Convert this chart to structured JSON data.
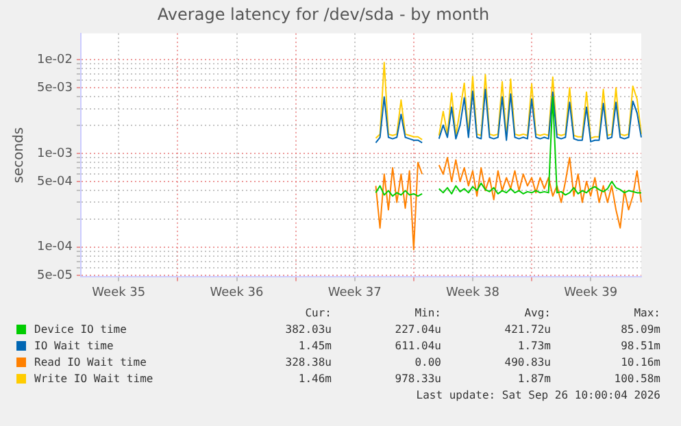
{
  "chart_data": {
    "type": "line",
    "title": "Average latency for /dev/sda - by month",
    "ylabel": "seconds",
    "log": true,
    "grid": true,
    "legend": "bottom",
    "marker": "none",
    "line_style": "solid",
    "categories": [
      null,
      null,
      null,
      null,
      null,
      null,
      null,
      null,
      null,
      "Week 35",
      null,
      null,
      null,
      null,
      null,
      null,
      null,
      null,
      null,
      null,
      null,
      null,
      null,
      null,
      null,
      null,
      null,
      null,
      null,
      null,
      null,
      null,
      null,
      null,
      null,
      null,
      null,
      "Week 36",
      null,
      null,
      null,
      null,
      null,
      null,
      null,
      null,
      null,
      null,
      null,
      null,
      null,
      null,
      null,
      null,
      null,
      null,
      null,
      null,
      null,
      null,
      null,
      null,
      null,
      null,
      null,
      "Week 37",
      null,
      null,
      null,
      null,
      null,
      null,
      null,
      null,
      null,
      null,
      null,
      null,
      null,
      null,
      null,
      null,
      null,
      null,
      null,
      null,
      null,
      null,
      null,
      null,
      null,
      null,
      null,
      "Week 38",
      null,
      null,
      null,
      null,
      null,
      null,
      null,
      null,
      null,
      null,
      null,
      null,
      null,
      null,
      null,
      null,
      null,
      null,
      null,
      null,
      null,
      null,
      null,
      null,
      null,
      null,
      null,
      "Week 39",
      null,
      null,
      null,
      null,
      null,
      null,
      null,
      null,
      null,
      null,
      null,
      null
    ],
    "ylim": [
      4.8e-05,
      0.019
    ],
    "yticks": [
      {
        "value": 0.01,
        "label": "1e-02"
      },
      {
        "value": 0.005,
        "label": "5e-03"
      },
      {
        "value": 0.001,
        "label": "1e-03"
      },
      {
        "value": 0.0005,
        "label": "5e-04"
      },
      {
        "value": 0.0001,
        "label": "1e-04"
      },
      {
        "value": 5e-05,
        "label": "5e-05"
      },
      {
        "value": 0.009,
        "label": null
      },
      {
        "value": 0.008,
        "label": null
      },
      {
        "value": 0.007,
        "label": null
      },
      {
        "value": 0.006,
        "label": null
      },
      {
        "value": 0.004,
        "label": null
      },
      {
        "value": 0.003,
        "label": null
      },
      {
        "value": 0.002,
        "label": null
      },
      {
        "value": 0.0009,
        "label": null
      },
      {
        "value": 0.0008,
        "label": null
      },
      {
        "value": 0.0007,
        "label": null
      },
      {
        "value": 0.0006,
        "label": null
      },
      {
        "value": 0.0004,
        "label": null
      },
      {
        "value": 0.0003,
        "label": null
      },
      {
        "value": 0.0002,
        "label": null
      },
      {
        "value": 9e-05,
        "label": null
      },
      {
        "value": 8e-05,
        "label": null
      },
      {
        "value": 7e-05,
        "label": null
      },
      {
        "value": 6e-05,
        "label": null
      }
    ],
    "series": [
      {
        "name": "Device IO time",
        "color": "#00cc00",
        "values": [
          null,
          null,
          null,
          null,
          null,
          null,
          null,
          null,
          null,
          null,
          null,
          null,
          null,
          null,
          null,
          null,
          null,
          null,
          null,
          null,
          null,
          null,
          null,
          null,
          null,
          null,
          null,
          null,
          null,
          null,
          null,
          null,
          null,
          null,
          null,
          null,
          null,
          null,
          null,
          null,
          null,
          null,
          null,
          null,
          null,
          null,
          null,
          null,
          null,
          null,
          null,
          null,
          null,
          null,
          null,
          null,
          null,
          null,
          null,
          null,
          null,
          null,
          null,
          null,
          null,
          null,
          null,
          null,
          null,
          null,
          0.00038,
          0.00045,
          0.00036,
          0.0004,
          0.00035,
          0.00038,
          0.00036,
          0.0004,
          0.00036,
          0.00037,
          0.00035,
          0.00037,
          null,
          null,
          null,
          0.00042,
          0.00038,
          0.00043,
          0.00037,
          0.00045,
          0.00039,
          0.00042,
          0.00038,
          0.00044,
          0.0004,
          0.00048,
          0.00041,
          0.00039,
          0.00043,
          0.00037,
          0.0004,
          0.00038,
          0.00042,
          0.00038,
          0.0004,
          0.00037,
          0.00039,
          0.00038,
          0.0004,
          0.00038,
          0.00039,
          0.00038,
          0.004,
          0.00038,
          0.00039,
          0.00036,
          0.00038,
          0.00043,
          0.00037,
          0.0004,
          0.00038,
          0.00042,
          0.00044,
          0.00041,
          0.00039,
          0.00042,
          0.0005,
          0.00043,
          0.00041,
          0.00038,
          0.0004,
          0.00039,
          0.00038,
          0.00038
        ]
      },
      {
        "name": "IO Wait time",
        "color": "#0066b3",
        "values": [
          null,
          null,
          null,
          null,
          null,
          null,
          null,
          null,
          null,
          null,
          null,
          null,
          null,
          null,
          null,
          null,
          null,
          null,
          null,
          null,
          null,
          null,
          null,
          null,
          null,
          null,
          null,
          null,
          null,
          null,
          null,
          null,
          null,
          null,
          null,
          null,
          null,
          null,
          null,
          null,
          null,
          null,
          null,
          null,
          null,
          null,
          null,
          null,
          null,
          null,
          null,
          null,
          null,
          null,
          null,
          null,
          null,
          null,
          null,
          null,
          null,
          null,
          null,
          null,
          null,
          null,
          null,
          null,
          null,
          null,
          0.0013,
          0.00148,
          0.004,
          0.00148,
          0.00143,
          0.00148,
          0.0026,
          0.00148,
          0.00143,
          0.00138,
          0.00138,
          0.0013,
          null,
          null,
          null,
          0.00143,
          0.002,
          0.00148,
          0.0031,
          0.00143,
          0.002,
          0.0039,
          0.00148,
          0.0046,
          0.00148,
          0.00143,
          0.0048,
          0.00148,
          0.00143,
          0.00148,
          0.004,
          0.00138,
          0.0043,
          0.00148,
          0.00143,
          0.00148,
          0.00143,
          0.0038,
          0.00148,
          0.00143,
          0.00148,
          0.00143,
          0.0045,
          0.00148,
          0.00143,
          0.00148,
          0.0035,
          0.00143,
          0.00138,
          0.00138,
          0.0031,
          0.00133,
          0.00138,
          0.00138,
          0.0034,
          0.00143,
          0.00148,
          0.0035,
          0.00148,
          0.00143,
          0.00148,
          0.0036,
          0.0027,
          0.00148
        ]
      },
      {
        "name": "Read IO Wait time",
        "color": "#ff8000",
        "values": [
          null,
          null,
          null,
          null,
          null,
          null,
          null,
          null,
          null,
          null,
          null,
          null,
          null,
          null,
          null,
          null,
          null,
          null,
          null,
          null,
          null,
          null,
          null,
          null,
          null,
          null,
          null,
          null,
          null,
          null,
          null,
          null,
          null,
          null,
          null,
          null,
          null,
          null,
          null,
          null,
          null,
          null,
          null,
          null,
          null,
          null,
          null,
          null,
          null,
          null,
          null,
          null,
          null,
          null,
          null,
          null,
          null,
          null,
          null,
          null,
          null,
          null,
          null,
          null,
          null,
          null,
          null,
          null,
          null,
          null,
          0.00045,
          0.00016,
          0.0006,
          0.00025,
          0.0007,
          0.0003,
          0.0006,
          0.00026,
          0.00065,
          9.4e-05,
          0.0008,
          0.0006,
          null,
          null,
          null,
          0.00075,
          0.0006,
          0.0009,
          0.0005,
          0.00085,
          0.0005,
          0.0007,
          0.00045,
          0.00065,
          0.00035,
          0.0007,
          0.0004,
          0.00055,
          0.00032,
          0.00065,
          0.0004,
          0.00055,
          0.00042,
          0.00065,
          0.0004,
          0.0006,
          0.00045,
          0.00055,
          0.00038,
          0.00055,
          0.00042,
          0.00055,
          0.00035,
          0.00045,
          0.0003,
          0.0005,
          0.0009,
          0.00035,
          0.0006,
          0.0003,
          0.0005,
          0.00035,
          0.00055,
          0.0003,
          0.00045,
          0.0003,
          0.00045,
          0.00025,
          0.00016,
          0.0004,
          0.00025,
          0.00035,
          0.00065,
          0.0003
        ]
      },
      {
        "name": "Write IO Wait time",
        "color": "#ffcc00",
        "values": [
          null,
          null,
          null,
          null,
          null,
          null,
          null,
          null,
          null,
          null,
          null,
          null,
          null,
          null,
          null,
          null,
          null,
          null,
          null,
          null,
          null,
          null,
          null,
          null,
          null,
          null,
          null,
          null,
          null,
          null,
          null,
          null,
          null,
          null,
          null,
          null,
          null,
          null,
          null,
          null,
          null,
          null,
          null,
          null,
          null,
          null,
          null,
          null,
          null,
          null,
          null,
          null,
          null,
          null,
          null,
          null,
          null,
          null,
          null,
          null,
          null,
          null,
          null,
          null,
          null,
          null,
          null,
          null,
          null,
          null,
          0.00145,
          0.0016,
          0.0093,
          0.0016,
          0.00155,
          0.0016,
          0.0037,
          0.0016,
          0.00155,
          0.0015,
          0.0015,
          0.0014,
          null,
          null,
          null,
          0.00155,
          0.0028,
          0.0016,
          0.0044,
          0.00155,
          0.0029,
          0.0056,
          0.0016,
          0.0066,
          0.0016,
          0.00155,
          0.0069,
          0.0016,
          0.00155,
          0.0016,
          0.0058,
          0.0015,
          0.0062,
          0.0016,
          0.00155,
          0.0016,
          0.00155,
          0.0055,
          0.0016,
          0.00155,
          0.0016,
          0.00155,
          0.0065,
          0.0016,
          0.00155,
          0.0016,
          0.005,
          0.00155,
          0.0015,
          0.0015,
          0.0045,
          0.00145,
          0.0015,
          0.0015,
          0.0048,
          0.00155,
          0.0016,
          0.005,
          0.0016,
          0.00155,
          0.0016,
          0.0052,
          0.0038,
          0.0016
        ]
      }
    ],
    "annotations": [
      "Cur:",
      "Min:",
      "Avg:",
      "Max:",
      "382.03u",
      "227.04u",
      "421.72u",
      "85.09m",
      "1.45m",
      "611.04u",
      "1.73m",
      "98.51m",
      "328.38u",
      "0.00",
      "490.83u",
      "10.16m",
      "1.46m",
      "978.33u",
      "1.87m",
      "100.58m",
      "Last update: Sat Sep 26 10:00:04 2026"
    ]
  }
}
